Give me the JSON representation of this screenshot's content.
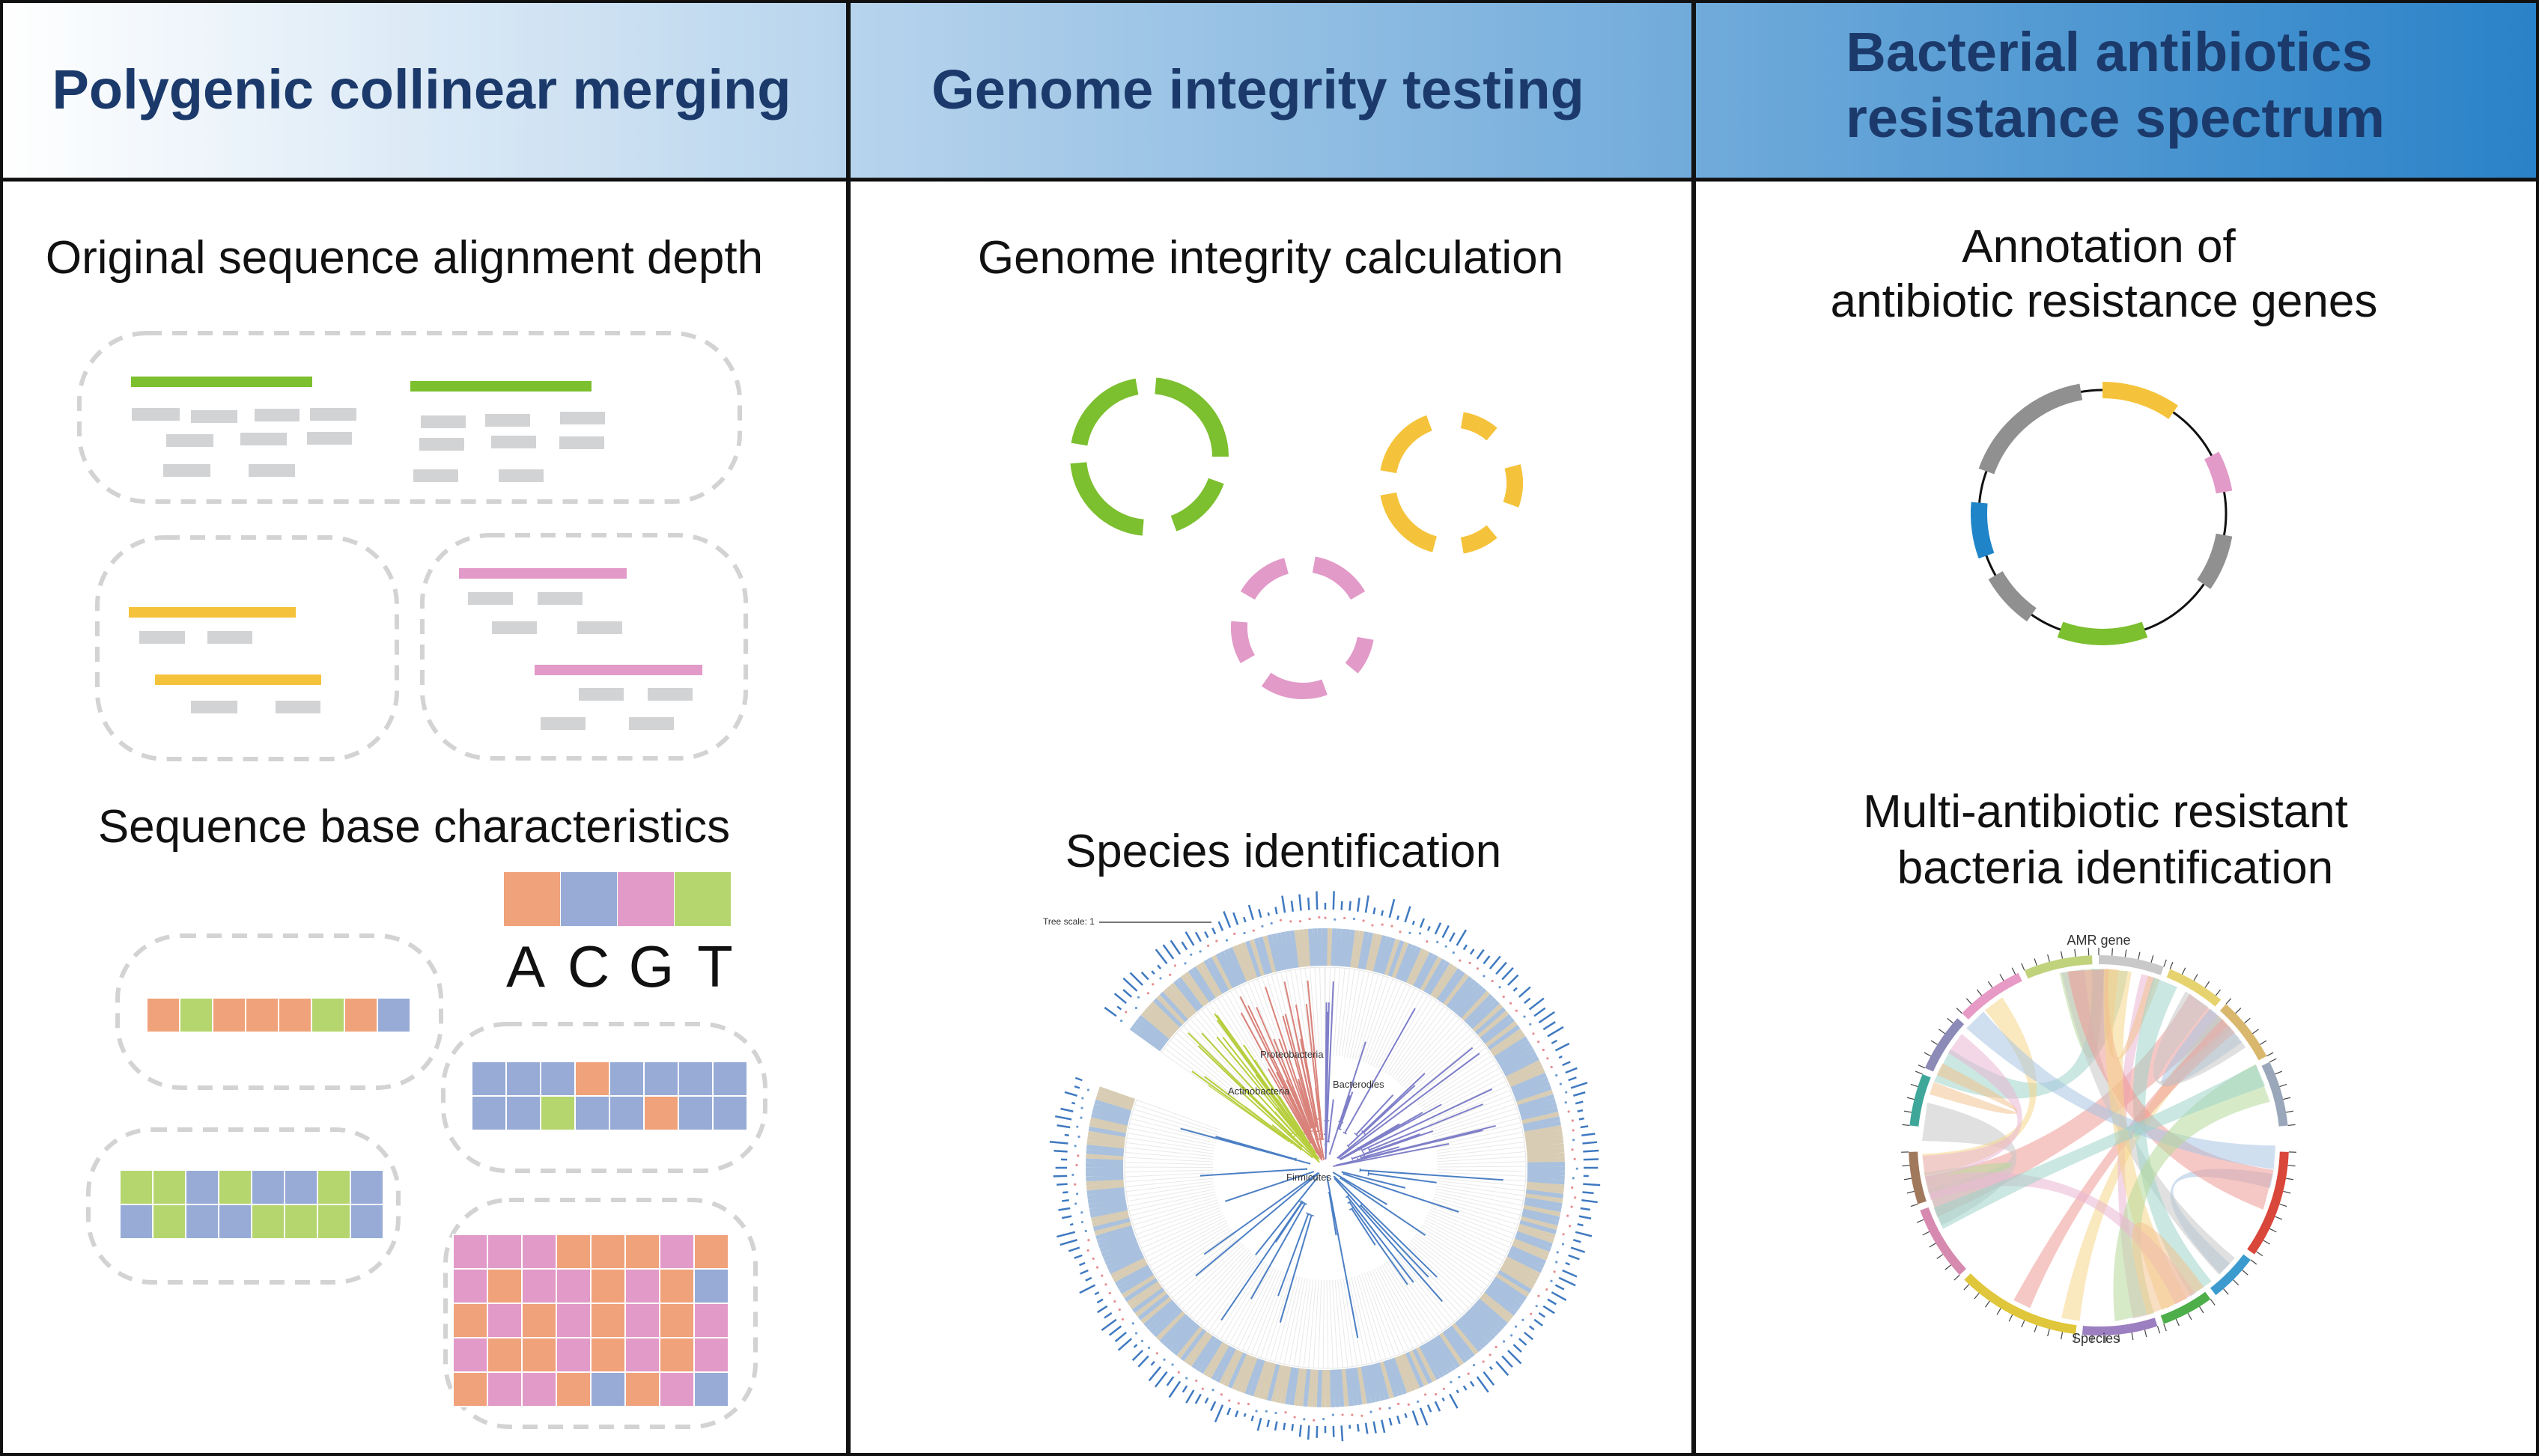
{
  "colors": {
    "green": "#7cbf2f",
    "yellow": "#f5c33b",
    "pink": "#e29ac8",
    "gray": "#d2d3d5",
    "blue": "#1f85c8",
    "orange": "#f0a27a",
    "lightgreen": "#b5d66f",
    "periwinkle": "#97abd6",
    "title": "#1b3a6b"
  },
  "columns": [
    {
      "title_lines": [
        "Polygenic collinear merging"
      ]
    },
    {
      "title_lines": [
        "Genome integrity testing"
      ]
    },
    {
      "title_lines": [
        "Bacterial antibiotics",
        "resistance spectrum"
      ]
    }
  ],
  "col1": {
    "section1_title": "Original sequence alignment depth",
    "section2_title": "Sequence base characteristics",
    "bases": [
      "A",
      "C",
      "G",
      "T"
    ]
  },
  "col2": {
    "section1_title": "Genome integrity calculation",
    "section2_title": "Species identification",
    "tree_labels": {
      "scale": "Tree scale: 1",
      "clade1": "Proteobacteria",
      "clade2": "Actinobacteria",
      "clade3": "Bacterodies",
      "clade4": "Firmicutes"
    }
  },
  "col3": {
    "section1_title_lines": [
      "Annotation of",
      "antibiotic resistance genes"
    ],
    "section2_title_lines": [
      "Multi-antibiotic resistant",
      "bacteria identification"
    ],
    "chord_top_label": "AMR gene",
    "chord_bottom_label": "Species"
  }
}
